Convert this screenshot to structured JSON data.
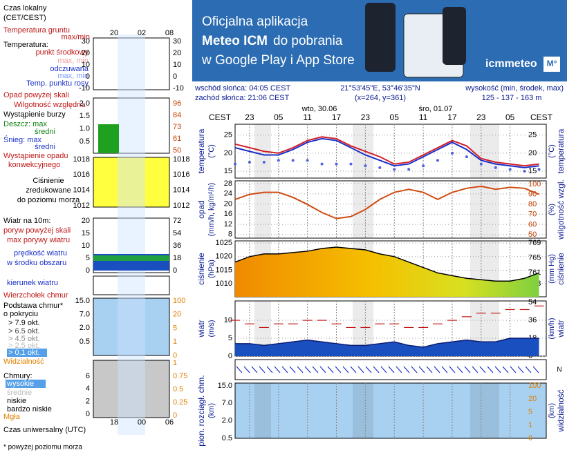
{
  "banner": {
    "line1": "Oficjalna aplikacja",
    "line2_bold": "Meteo ICM",
    "line2_rest": "do pobrania",
    "line3": "w Google Play i App Store",
    "brand": "icmmeteo",
    "badge": "M°"
  },
  "info": {
    "sunrise": "wschód słońca: 04:05 CEST",
    "sunset": "zachód słońca: 21:06 CEST",
    "coords": "21°53'45\"E, 53°46'35\"N",
    "grid": "(x=264,  y=361)",
    "height_label": "wysokość (min, środek, max)",
    "height": "125 - 137 - 163 m",
    "day1": "wto, 30.06",
    "day2": "śro, 01.07",
    "tz": "CEST"
  },
  "left_panel": {
    "local_time": "Czas lokalny",
    "local_time_zone": "(CET/CEST)",
    "local_hours": [
      "20",
      "02",
      "08"
    ],
    "ground_temp": "Temperatura gruntu",
    "ground_maxmin": "max/min",
    "temperature": "Temperatura:",
    "max_min_1": "max, min",
    "max_min_2": "max, min",
    "precip_over": "Opad powyżej skali",
    "storm": "Wystąpienie burzy",
    "rain_max": "Deszcz: max",
    "rain_avg": "średni",
    "snow_max": "Śnieg: max",
    "snow_avg": "średni",
    "conv_1": "Wystąpienie opadu",
    "conv_2": "konwekcyjnego",
    "pres_2": "zredukowane",
    "pres_3": "do poziomu morza",
    "wind": "Wiatr na 10m:",
    "gust_over": "poryw powyżej skali",
    "wind_center": "w środku obszaru",
    "wind_dir": "kierunek wiatru",
    "cloud_top": "Wierzchołek chmur",
    "cloud_base": "Podstawa chmur*",
    "cloud_cover": "o pokryciu",
    "okt": [
      "> 7.9 okt.",
      "> 6.5 okt.",
      "> 4.5 okt.",
      "> 2.5 okt.",
      "> 0.1 okt."
    ],
    "visibility": "Widzialność",
    "clouds": "Chmury:",
    "cloud_levels": [
      "wysokie",
      "średnie",
      "niskie",
      "bardzo niskie"
    ],
    "fog": "Mgła",
    "utc": "Czas uniwersalny (UTC)",
    "utc_hours": [
      "18",
      "00",
      "06"
    ],
    "footnote": "* powyżej poziomu morza",
    "axes": {
      "temp": [
        "30",
        "20",
        "10",
        "0",
        "-10"
      ],
      "opad": [
        "2.0",
        "1.5",
        "1.0",
        "0.5"
      ],
      "hum": [
        "96",
        "84",
        "73",
        "61",
        "50"
      ],
      "pres": [
        "1018",
        "1016",
        "1014",
        "1012"
      ],
      "wind_l": [
        "20",
        "15",
        "10",
        "5",
        "0"
      ],
      "wind_r": [
        "72",
        "54",
        "36",
        "18",
        "0"
      ],
      "base_l": [
        "15.0",
        "7.0",
        "2.0",
        "0.5"
      ],
      "base_r": [
        "100",
        "20",
        "5",
        "1",
        "0"
      ],
      "cld_l": [
        "6",
        "4",
        "2",
        "0"
      ],
      "cld_r": [
        "1",
        "0.75",
        "0.5",
        "0.25",
        "0"
      ]
    }
  },
  "chart_data": [
    {
      "type": "line",
      "y_label": "temperatura",
      "y_unit": "(°C)",
      "x": [
        0,
        3,
        6,
        9,
        12,
        15,
        18,
        21,
        24,
        27,
        30,
        33,
        36,
        39,
        42,
        45,
        48,
        51,
        54,
        57,
        60,
        63
      ],
      "xlim": [
        0,
        64.5
      ],
      "xticks": [
        {
          "value": 3,
          "label": "23"
        },
        {
          "value": 9,
          "label": "05"
        },
        {
          "value": 15,
          "label": "11"
        },
        {
          "value": 21,
          "label": "17"
        },
        {
          "value": 27,
          "label": "23"
        },
        {
          "value": 33,
          "label": "05"
        },
        {
          "value": 39,
          "label": "11"
        },
        {
          "value": 45,
          "label": "17"
        },
        {
          "value": 51,
          "label": "23"
        },
        {
          "value": 57,
          "label": "05"
        }
      ],
      "ylim": [
        13.1,
        28
      ],
      "yticks": [
        15,
        20,
        25
      ],
      "series": [
        {
          "name": "punkt środkowy",
          "color": "#d0202a",
          "kind": "line",
          "values": [
            22.5,
            21.5,
            20.5,
            20,
            21.5,
            23.5,
            24.5,
            24,
            22,
            20.5,
            19,
            17,
            17.5,
            19.5,
            21.5,
            23.5,
            22,
            18.5,
            17.5,
            17,
            16.5,
            17
          ]
        },
        {
          "name": "odczuwana",
          "color": "#1a2fc8",
          "kind": "line",
          "values": [
            21.5,
            20.5,
            19.5,
            19.5,
            21,
            23,
            24,
            23.5,
            21.5,
            19.5,
            18,
            16.5,
            17,
            19,
            21,
            23,
            21,
            18,
            17,
            16.5,
            16,
            16.5
          ]
        },
        {
          "name": "Temp. punktu rosy",
          "color": "#5060e0",
          "kind": "dots",
          "values": [
            17,
            17.5,
            17.5,
            18,
            18,
            18,
            17,
            17,
            17,
            16.5,
            16,
            15.5,
            15.5,
            16.5,
            18,
            20,
            19,
            17,
            16,
            15.5,
            15,
            15.5
          ]
        }
      ]
    },
    {
      "type": "line",
      "y_label": "opad",
      "y_unit": "(mm/h, kg/m²/h)",
      "y2_label": "wilgotność wzgl.",
      "y2_unit": "(%)",
      "x": [
        0,
        3,
        6,
        9,
        12,
        15,
        18,
        21,
        24,
        27,
        30,
        33,
        36,
        39,
        42,
        45,
        48,
        51,
        54,
        57,
        60,
        63
      ],
      "xlim": [
        0,
        64.5
      ],
      "ylim": [
        6.6,
        29.1
      ],
      "yticks": [
        8,
        12,
        16,
        20,
        24,
        28
      ],
      "y2lim": [
        46.6,
        103.4
      ],
      "y2ticks": [
        50,
        60,
        70,
        80,
        90,
        100
      ],
      "series": [
        {
          "name": "Wilgotność względna",
          "color": "#d04a10",
          "kind": "line",
          "axis": "y2",
          "values": [
            85,
            90,
            92,
            92,
            87,
            80,
            72,
            66,
            68,
            75,
            85,
            92,
            95,
            92,
            85,
            92,
            96,
            98,
            95,
            97,
            96,
            90
          ]
        }
      ]
    },
    {
      "type": "area",
      "y_label": "ciśnienie",
      "y_unit": "(hPa)",
      "y2_unit": "(mm Hg)",
      "x": [
        0,
        3,
        6,
        9,
        12,
        15,
        18,
        21,
        24,
        27,
        30,
        33,
        36,
        39,
        42,
        45,
        48,
        51,
        54,
        57,
        60,
        63
      ],
      "xlim": [
        0,
        64.5
      ],
      "ylim": [
        1005.2,
        1025.8
      ],
      "yticks": [
        1010,
        1015,
        1020,
        1025
      ],
      "y2lim": [
        754.5,
        769.6
      ],
      "y2ticks": [
        758,
        761,
        765,
        769
      ],
      "series": [
        {
          "name": "Ciśnienie",
          "color": "#000000",
          "kind": "area",
          "values": [
            1018,
            1020,
            1021,
            1021,
            1021.5,
            1022,
            1023,
            1023.5,
            1023,
            1022.5,
            1021,
            1020,
            1018,
            1016,
            1014,
            1013,
            1012,
            1011.5,
            1011,
            1011,
            1012,
            1014
          ]
        }
      ]
    },
    {
      "type": "area",
      "y_label": "wiatr",
      "y_unit": "(m/s)",
      "y2_unit": "(km/h)",
      "x": [
        0,
        3,
        6,
        9,
        12,
        15,
        18,
        21,
        24,
        27,
        30,
        33,
        36,
        39,
        42,
        45,
        48,
        51,
        54,
        57,
        60,
        63
      ],
      "xlim": [
        0,
        64.5
      ],
      "ylim": [
        0,
        15.4
      ],
      "yticks": [
        0,
        5,
        10
      ],
      "y2lim": [
        0,
        55.4
      ],
      "y2ticks": [
        0,
        18,
        36,
        54
      ],
      "series": [
        {
          "name": "prędkość wiatru",
          "color": "#1a4fc0",
          "kind": "area",
          "values": [
            3.5,
            3.5,
            3,
            3.5,
            4,
            4.5,
            4,
            3.5,
            3,
            3,
            3.5,
            4,
            3,
            2.5,
            3.5,
            4,
            4.5,
            4,
            4,
            5,
            5,
            5
          ]
        },
        {
          "name": "max porywy wiatru",
          "color": "#c01818",
          "kind": "dash",
          "values": [
            10,
            9,
            8,
            9,
            9,
            10,
            10,
            9,
            8,
            8,
            9,
            9,
            8,
            8,
            9,
            10,
            11,
            12,
            12,
            13,
            13,
            14
          ]
        }
      ]
    },
    {
      "type": "levels",
      "y_label": "pion. rozciągł. chm.",
      "y_unit": "(km)",
      "y2_label": "widzialność",
      "y2_unit": "(km)",
      "ytick_labels": [
        "15.0",
        "7.0",
        "2.0",
        "0.5"
      ],
      "y2tick_labels": [
        "100",
        "20",
        "5",
        "1",
        "0"
      ]
    }
  ]
}
